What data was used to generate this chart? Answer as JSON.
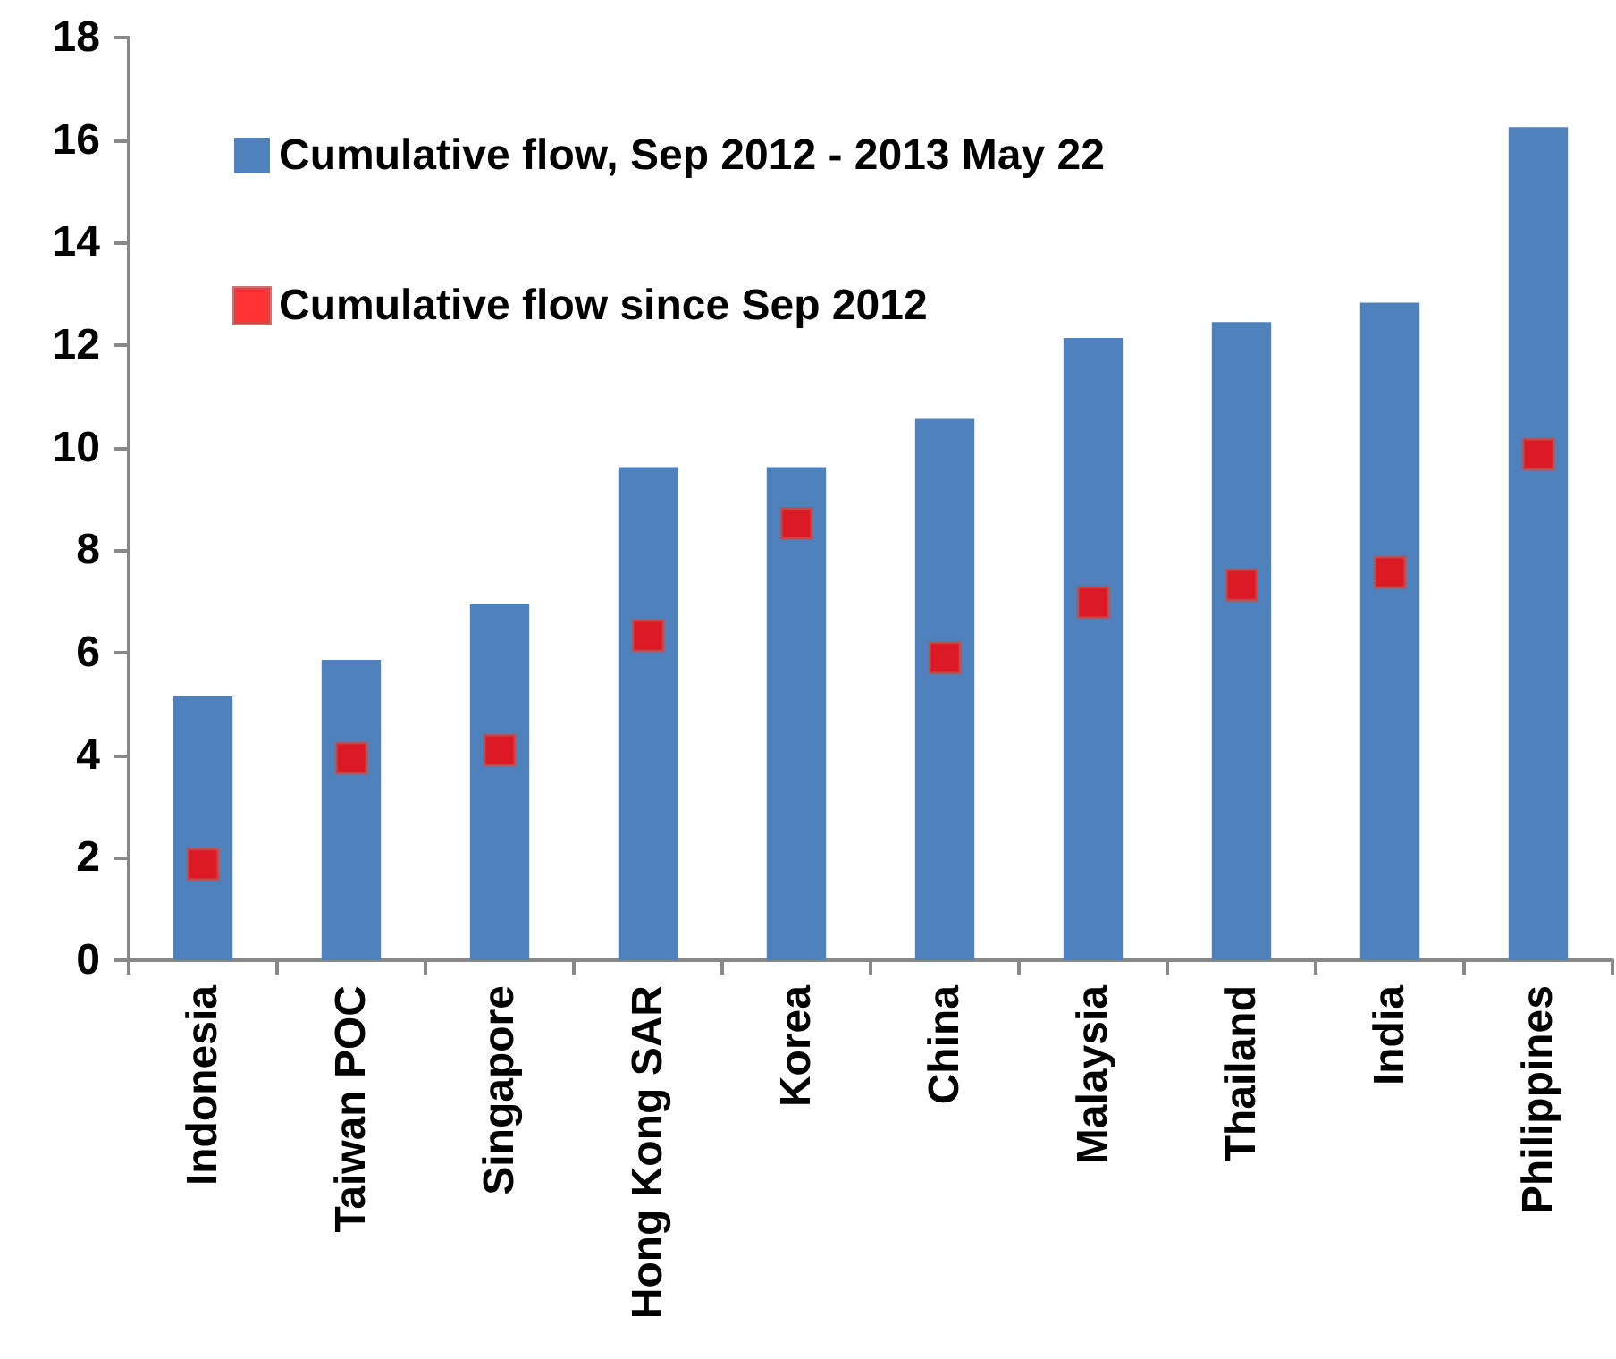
{
  "chart_data": {
    "type": "bar",
    "categories": [
      "Indonesia",
      "Taiwan POC",
      "Singapore",
      "Hong Kong SAR",
      "Korea",
      "China",
      "Malaysia",
      "Thailand",
      "India",
      "Philippines"
    ],
    "series": [
      {
        "name": "Cumulative flow, Sep 2012 - 2013 May 22",
        "color": "#4f81bd",
        "values": [
          5.15,
          5.86,
          6.94,
          9.62,
          9.62,
          10.56,
          12.14,
          12.45,
          12.83,
          16.25
        ]
      },
      {
        "name": "Cumulative flow since Sep 2012",
        "type": "scatter",
        "color": "#ff0000",
        "marker": "square",
        "values": [
          1.87,
          3.94,
          4.1,
          6.33,
          8.52,
          5.9,
          6.98,
          7.32,
          7.57,
          9.87
        ]
      }
    ],
    "ylim": [
      0,
      18
    ],
    "yticks": [
      0,
      2,
      4,
      6,
      8,
      10,
      12,
      14,
      16,
      18
    ],
    "grid": false,
    "legend": "top left"
  }
}
